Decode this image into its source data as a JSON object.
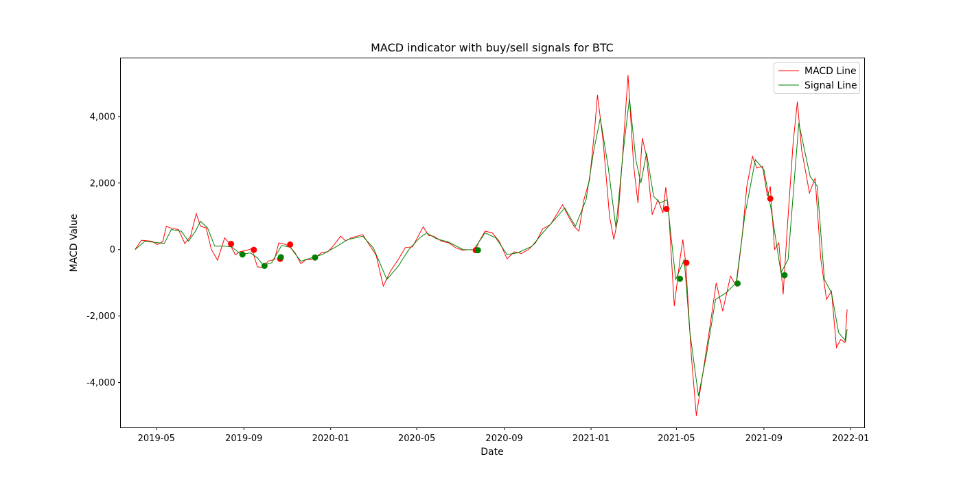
{
  "chart_data": {
    "type": "line",
    "title": "MACD indicator with buy/sell signals for BTC",
    "xlabel": "Date",
    "ylabel": "MACD Value",
    "x_range": [
      "2019-03-12",
      "2022-01-20"
    ],
    "ylim": [
      -5350,
      5750
    ],
    "x_ticks": [
      "2019-05",
      "2019-09",
      "2020-01",
      "2020-05",
      "2020-09",
      "2021-01",
      "2021-05",
      "2021-09",
      "2022-01"
    ],
    "y_ticks": [
      4000,
      2000,
      0,
      -2000,
      -4000
    ],
    "y_tick_labels": [
      "4,000",
      "2,000",
      "0",
      "-2,000",
      "-4,000"
    ],
    "grid": false,
    "legend_position": "top-right",
    "series": [
      {
        "name": "MACD Line",
        "color": "#ff0000",
        "points": [
          [
            "2019-04-01",
            0
          ],
          [
            "2019-04-10",
            280
          ],
          [
            "2019-04-25",
            250
          ],
          [
            "2019-05-02",
            150
          ],
          [
            "2019-05-10",
            230
          ],
          [
            "2019-05-15",
            700
          ],
          [
            "2019-05-22",
            640
          ],
          [
            "2019-06-01",
            600
          ],
          [
            "2019-06-10",
            180
          ],
          [
            "2019-06-18",
            400
          ],
          [
            "2019-06-26",
            1080
          ],
          [
            "2019-07-02",
            700
          ],
          [
            "2019-07-10",
            650
          ],
          [
            "2019-07-17",
            20
          ],
          [
            "2019-07-26",
            -320
          ],
          [
            "2019-08-05",
            350
          ],
          [
            "2019-08-12",
            170
          ],
          [
            "2019-08-20",
            -160
          ],
          [
            "2019-08-27",
            -60
          ],
          [
            "2019-09-05",
            -30
          ],
          [
            "2019-09-12",
            30
          ],
          [
            "2019-09-20",
            -520
          ],
          [
            "2019-09-28",
            -540
          ],
          [
            "2019-10-05",
            -350
          ],
          [
            "2019-10-14",
            -300
          ],
          [
            "2019-10-20",
            200
          ],
          [
            "2019-10-30",
            150
          ],
          [
            "2019-11-05",
            70
          ],
          [
            "2019-11-12",
            -100
          ],
          [
            "2019-11-20",
            -420
          ],
          [
            "2019-11-28",
            -300
          ],
          [
            "2019-12-05",
            -300
          ],
          [
            "2019-12-12",
            -220
          ],
          [
            "2019-12-20",
            -80
          ],
          [
            "2019-12-28",
            -70
          ],
          [
            "2020-01-05",
            120
          ],
          [
            "2020-01-15",
            400
          ],
          [
            "2020-01-22",
            260
          ],
          [
            "2020-01-30",
            350
          ],
          [
            "2020-02-15",
            450
          ],
          [
            "2020-02-25",
            120
          ],
          [
            "2020-03-05",
            -180
          ],
          [
            "2020-03-15",
            -1100
          ],
          [
            "2020-03-25",
            -650
          ],
          [
            "2020-04-05",
            -300
          ],
          [
            "2020-04-15",
            60
          ],
          [
            "2020-04-25",
            80
          ],
          [
            "2020-05-05",
            480
          ],
          [
            "2020-05-10",
            680
          ],
          [
            "2020-05-18",
            420
          ],
          [
            "2020-05-25",
            400
          ],
          [
            "2020-06-05",
            250
          ],
          [
            "2020-06-15",
            200
          ],
          [
            "2020-06-25",
            50
          ],
          [
            "2020-07-05",
            -20
          ],
          [
            "2020-07-15",
            0
          ],
          [
            "2020-07-22",
            -30
          ],
          [
            "2020-07-28",
            250
          ],
          [
            "2020-08-05",
            550
          ],
          [
            "2020-08-15",
            500
          ],
          [
            "2020-08-25",
            250
          ],
          [
            "2020-09-05",
            -280
          ],
          [
            "2020-09-15",
            -70
          ],
          [
            "2020-09-25",
            -120
          ],
          [
            "2020-10-05",
            0
          ],
          [
            "2020-10-15",
            200
          ],
          [
            "2020-10-25",
            620
          ],
          [
            "2020-11-05",
            750
          ],
          [
            "2020-11-15",
            1100
          ],
          [
            "2020-11-22",
            1350
          ],
          [
            "2020-11-30",
            1000
          ],
          [
            "2020-12-08",
            700
          ],
          [
            "2020-12-15",
            550
          ],
          [
            "2020-12-22",
            1500
          ],
          [
            "2020-12-30",
            2100
          ],
          [
            "2021-01-06",
            3600
          ],
          [
            "2021-01-10",
            4650
          ],
          [
            "2021-01-18",
            3250
          ],
          [
            "2021-01-27",
            1000
          ],
          [
            "2021-02-02",
            300
          ],
          [
            "2021-02-08",
            950
          ],
          [
            "2021-02-14",
            2700
          ],
          [
            "2021-02-22",
            5250
          ],
          [
            "2021-03-02",
            2500
          ],
          [
            "2021-03-08",
            1400
          ],
          [
            "2021-03-14",
            3350
          ],
          [
            "2021-03-20",
            2800
          ],
          [
            "2021-03-28",
            1050
          ],
          [
            "2021-04-05",
            1500
          ],
          [
            "2021-04-12",
            1100
          ],
          [
            "2021-04-16",
            1870
          ],
          [
            "2021-04-20",
            1200
          ],
          [
            "2021-04-28",
            -1700
          ],
          [
            "2021-05-06",
            -300
          ],
          [
            "2021-05-10",
            300
          ],
          [
            "2021-05-14",
            -400
          ],
          [
            "2021-05-22",
            -3200
          ],
          [
            "2021-05-29",
            -5000
          ],
          [
            "2021-06-08",
            -3600
          ],
          [
            "2021-06-18",
            -2200
          ],
          [
            "2021-06-26",
            -1000
          ],
          [
            "2021-07-05",
            -1850
          ],
          [
            "2021-07-16",
            -800
          ],
          [
            "2021-07-24",
            -1100
          ],
          [
            "2021-08-01",
            300
          ],
          [
            "2021-08-08",
            1900
          ],
          [
            "2021-08-16",
            2800
          ],
          [
            "2021-08-22",
            2450
          ],
          [
            "2021-08-30",
            2500
          ],
          [
            "2021-09-06",
            1600
          ],
          [
            "2021-09-10",
            1900
          ],
          [
            "2021-09-16",
            0
          ],
          [
            "2021-09-22",
            200
          ],
          [
            "2021-09-28",
            -1350
          ],
          [
            "2021-10-04",
            700
          ],
          [
            "2021-10-12",
            3200
          ],
          [
            "2021-10-18",
            4450
          ],
          [
            "2021-10-24",
            3000
          ],
          [
            "2021-10-30",
            2300
          ],
          [
            "2021-11-04",
            1700
          ],
          [
            "2021-11-12",
            2150
          ],
          [
            "2021-11-20",
            -300
          ],
          [
            "2021-11-28",
            -1500
          ],
          [
            "2021-12-05",
            -1250
          ],
          [
            "2021-12-12",
            -2950
          ],
          [
            "2021-12-18",
            -2700
          ],
          [
            "2021-12-24",
            -2800
          ],
          [
            "2021-12-27",
            -1800
          ]
        ]
      },
      {
        "name": "Signal Line",
        "color": "#008000",
        "points": [
          [
            "2019-04-01",
            0
          ],
          [
            "2019-04-15",
            250
          ],
          [
            "2019-05-05",
            200
          ],
          [
            "2019-05-12",
            180
          ],
          [
            "2019-05-22",
            600
          ],
          [
            "2019-06-05",
            550
          ],
          [
            "2019-06-15",
            250
          ],
          [
            "2019-06-25",
            550
          ],
          [
            "2019-07-02",
            850
          ],
          [
            "2019-07-12",
            650
          ],
          [
            "2019-07-22",
            100
          ],
          [
            "2019-08-05",
            100
          ],
          [
            "2019-08-15",
            80
          ],
          [
            "2019-08-28",
            -150
          ],
          [
            "2019-09-10",
            -100
          ],
          [
            "2019-09-20",
            -250
          ],
          [
            "2019-09-28",
            -470
          ],
          [
            "2019-10-10",
            -400
          ],
          [
            "2019-10-24",
            120
          ],
          [
            "2019-11-05",
            70
          ],
          [
            "2019-11-20",
            -350
          ],
          [
            "2019-12-05",
            -250
          ],
          [
            "2019-12-20",
            -150
          ],
          [
            "2020-01-10",
            100
          ],
          [
            "2020-01-25",
            300
          ],
          [
            "2020-02-15",
            400
          ],
          [
            "2020-03-01",
            50
          ],
          [
            "2020-03-20",
            -900
          ],
          [
            "2020-04-05",
            -500
          ],
          [
            "2020-04-20",
            0
          ],
          [
            "2020-05-05",
            350
          ],
          [
            "2020-05-15",
            500
          ],
          [
            "2020-05-28",
            330
          ],
          [
            "2020-06-15",
            220
          ],
          [
            "2020-07-05",
            0
          ],
          [
            "2020-07-20",
            -10
          ],
          [
            "2020-08-05",
            500
          ],
          [
            "2020-08-20",
            350
          ],
          [
            "2020-09-05",
            -150
          ],
          [
            "2020-09-20",
            -100
          ],
          [
            "2020-10-10",
            100
          ],
          [
            "2020-10-25",
            500
          ],
          [
            "2020-11-15",
            1000
          ],
          [
            "2020-11-25",
            1250
          ],
          [
            "2020-12-10",
            700
          ],
          [
            "2020-12-25",
            1500
          ],
          [
            "2021-01-05",
            3000
          ],
          [
            "2021-01-14",
            3950
          ],
          [
            "2021-01-25",
            2500
          ],
          [
            "2021-02-05",
            650
          ],
          [
            "2021-02-15",
            2900
          ],
          [
            "2021-02-24",
            4550
          ],
          [
            "2021-03-05",
            2700
          ],
          [
            "2021-03-12",
            2000
          ],
          [
            "2021-03-20",
            2900
          ],
          [
            "2021-03-30",
            1600
          ],
          [
            "2021-04-08",
            1400
          ],
          [
            "2021-04-18",
            1500
          ],
          [
            "2021-04-30",
            -900
          ],
          [
            "2021-05-12",
            -300
          ],
          [
            "2021-05-20",
            -2500
          ],
          [
            "2021-06-01",
            -4400
          ],
          [
            "2021-06-12",
            -3200
          ],
          [
            "2021-06-25",
            -1500
          ],
          [
            "2021-07-10",
            -1300
          ],
          [
            "2021-07-24",
            -1000
          ],
          [
            "2021-08-05",
            1000
          ],
          [
            "2021-08-20",
            2700
          ],
          [
            "2021-09-01",
            2400
          ],
          [
            "2021-09-12",
            1100
          ],
          [
            "2021-09-25",
            -700
          ],
          [
            "2021-10-05",
            -300
          ],
          [
            "2021-10-20",
            3800
          ],
          [
            "2021-11-05",
            2200
          ],
          [
            "2021-11-15",
            1900
          ],
          [
            "2021-11-25",
            -900
          ],
          [
            "2021-12-05",
            -1300
          ],
          [
            "2021-12-15",
            -2500
          ],
          [
            "2021-12-25",
            -2750
          ],
          [
            "2021-12-27",
            -2400
          ]
        ]
      }
    ],
    "sell_signals": {
      "color": "#ff0000",
      "points": [
        [
          "2019-08-14",
          170
        ],
        [
          "2019-09-15",
          -10
        ],
        [
          "2019-10-22",
          -280
        ],
        [
          "2019-11-05",
          150
        ],
        [
          "2020-07-23",
          -20
        ],
        [
          "2021-04-17",
          1220
        ],
        [
          "2021-05-15",
          -400
        ],
        [
          "2021-09-10",
          1530
        ]
      ]
    },
    "buy_signals": {
      "color": "#008000",
      "points": [
        [
          "2019-08-30",
          -150
        ],
        [
          "2019-09-30",
          -490
        ],
        [
          "2019-10-23",
          -230
        ],
        [
          "2019-12-10",
          -240
        ],
        [
          "2020-07-26",
          -20
        ],
        [
          "2021-05-06",
          -880
        ],
        [
          "2021-07-26",
          -1020
        ],
        [
          "2021-09-30",
          -770
        ]
      ]
    }
  }
}
